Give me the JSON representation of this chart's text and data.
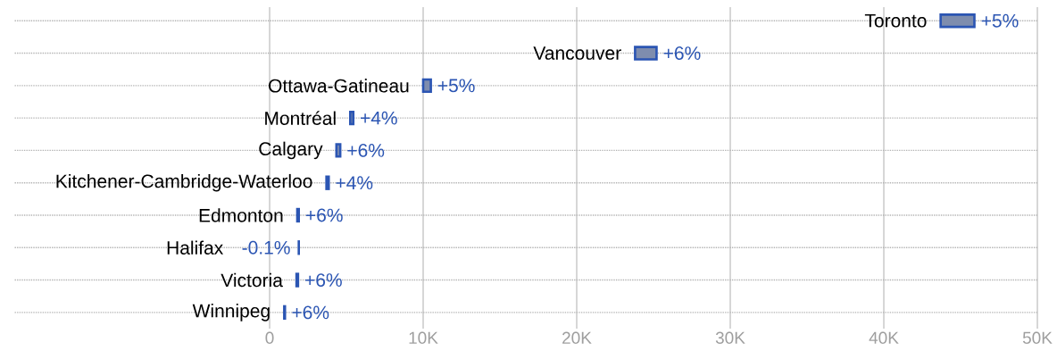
{
  "chart_data": {
    "type": "bar",
    "orientation": "horizontal",
    "categories": [
      "Toronto",
      "Vancouver",
      "Ottawa-Gatineau",
      "Montréal",
      "Calgary",
      "Kitchener-Cambridge-Waterloo",
      "Edmonton",
      "Halifax",
      "Victoria",
      "Winnipeg"
    ],
    "base": [
      43700,
      23800,
      10000,
      5250,
      4350,
      3700,
      1800,
      1900,
      1750,
      950
    ],
    "values": [
      2200,
      1400,
      500,
      200,
      250,
      150,
      100,
      -2,
      100,
      50
    ],
    "color": "#7e8dae",
    "annotations": [
      {
        "text": "+5%",
        "x": 45900,
        "y": "Toronto"
      },
      {
        "text": "+6%",
        "x": 25200,
        "y": "Vancouver"
      },
      {
        "text": "+5%",
        "x": 10500,
        "y": "Ottawa-Gatineau"
      },
      {
        "text": "+4%",
        "x": 5450,
        "y": "Montréal"
      },
      {
        "text": "+6%",
        "x": 4600,
        "y": "Calgary"
      },
      {
        "text": "+4%",
        "x": 3850,
        "y": "Kitchener-Cambridge-Waterloo"
      },
      {
        "text": "+6%",
        "x": 1900,
        "y": "Edmonton"
      },
      {
        "text": "-0.1%",
        "x": 1900,
        "y": "Halifax"
      },
      {
        "text": "+6%",
        "x": 1850,
        "y": "Victoria"
      },
      {
        "text": "+6%",
        "x": 1000,
        "y": "Winnipeg"
      }
    ],
    "xlim": [
      -16600,
      50000
    ],
    "xticks": [
      0,
      {
        "value": 10000,
        "label": "10K"
      },
      {
        "value": 20000,
        "label": "20K"
      },
      {
        "value": 30000,
        "label": "30K"
      },
      {
        "value": 40000,
        "label": "40K"
      },
      {
        "value": 50000,
        "label": "50K"
      }
    ],
    "grid": true
  }
}
